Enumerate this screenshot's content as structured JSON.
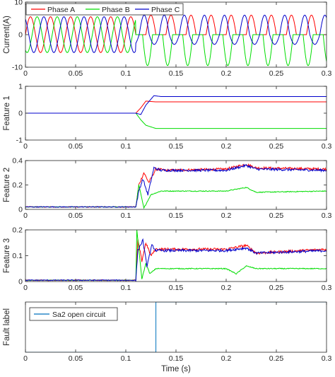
{
  "colors": {
    "phase_a": "#ff0000",
    "phase_b": "#00dd00",
    "phase_c": "#0000cc",
    "fault": "#0072bd",
    "axis": "#262626"
  },
  "xlabel": "Time (s)",
  "chart_data": [
    {
      "type": "line",
      "ylabel": "Current(A)",
      "xlim": [
        0,
        0.3
      ],
      "ylim": [
        -10,
        10
      ],
      "xticks": [
        0,
        0.05,
        0.1,
        0.15,
        0.2,
        0.25,
        0.3
      ],
      "yticks": [
        -10,
        0,
        10
      ],
      "legend_position": "top",
      "grid": false,
      "series": [
        {
          "name": "Phase A",
          "color": "#ff0000",
          "amplitude": 5.5,
          "frequency_hz": 50,
          "phase_deg": 0,
          "after_fault": {
            "start": 0.11,
            "min": 0,
            "max": 6
          }
        },
        {
          "name": "Phase B",
          "color": "#00dd00",
          "amplitude": 5.5,
          "frequency_hz": 50,
          "phase_deg": -120,
          "after_fault": {
            "start": 0.11,
            "min": -9.5,
            "max": 0
          }
        },
        {
          "name": "Phase C",
          "color": "#0000cc",
          "amplitude": 5.5,
          "frequency_hz": 50,
          "phase_deg": 120,
          "after_fault": {
            "start": 0.11,
            "min": -3,
            "max": 6
          }
        }
      ]
    },
    {
      "type": "line",
      "ylabel": "Feature 1",
      "xlim": [
        0,
        0.3
      ],
      "ylim": [
        -1,
        1
      ],
      "xticks": [
        0,
        0.05,
        0.1,
        0.15,
        0.2,
        0.25,
        0.3
      ],
      "yticks": [
        -1,
        0,
        1
      ],
      "grid": false,
      "series": [
        {
          "color": "#ff0000",
          "x": [
            0,
            0.11,
            0.115,
            0.12,
            0.13,
            0.3
          ],
          "y": [
            0,
            0,
            0.2,
            0.45,
            0.42,
            0.42
          ]
        },
        {
          "color": "#00dd00",
          "x": [
            0,
            0.11,
            0.115,
            0.12,
            0.13,
            0.3
          ],
          "y": [
            0,
            0,
            -0.25,
            -0.45,
            -0.57,
            -0.57
          ]
        },
        {
          "color": "#0000cc",
          "x": [
            0,
            0.11,
            0.115,
            0.12,
            0.128,
            0.135,
            0.3
          ],
          "y": [
            0,
            0,
            -0.05,
            0.3,
            0.65,
            0.62,
            0.62
          ]
        }
      ]
    },
    {
      "type": "line",
      "ylabel": "Feature 2",
      "xlim": [
        0,
        0.3
      ],
      "ylim": [
        0,
        0.4
      ],
      "xticks": [
        0,
        0.05,
        0.1,
        0.15,
        0.2,
        0.25,
        0.3
      ],
      "yticks": [
        0,
        0.2,
        0.4
      ],
      "grid": false,
      "series": [
        {
          "color": "#ff0000",
          "x": [
            0,
            0.11,
            0.113,
            0.118,
            0.123,
            0.13,
            0.14,
            0.2,
            0.22,
            0.23,
            0.3
          ],
          "y": [
            0.02,
            0.02,
            0.2,
            0.3,
            0.22,
            0.33,
            0.32,
            0.33,
            0.37,
            0.34,
            0.33
          ]
        },
        {
          "color": "#00dd00",
          "x": [
            0,
            0.11,
            0.113,
            0.118,
            0.125,
            0.135,
            0.2,
            0.22,
            0.23,
            0.3
          ],
          "y": [
            0.02,
            0.02,
            0.2,
            0.01,
            0.12,
            0.15,
            0.15,
            0.18,
            0.14,
            0.15
          ]
        },
        {
          "color": "#0000cc",
          "x": [
            0,
            0.11,
            0.113,
            0.117,
            0.122,
            0.128,
            0.135,
            0.2,
            0.22,
            0.23,
            0.3
          ],
          "y": [
            0.02,
            0.02,
            0.15,
            0.25,
            0.12,
            0.34,
            0.32,
            0.32,
            0.36,
            0.33,
            0.32
          ]
        }
      ]
    },
    {
      "type": "line",
      "ylabel": "Feature 3",
      "xlim": [
        0,
        0.3
      ],
      "ylim": [
        0,
        0.2
      ],
      "xticks": [
        0,
        0.05,
        0.1,
        0.15,
        0.2,
        0.25,
        0.3
      ],
      "yticks": [
        0,
        0.1,
        0.2
      ],
      "grid": false,
      "series": [
        {
          "color": "#ff0000",
          "x": [
            0,
            0.11,
            0.112,
            0.116,
            0.12,
            0.125,
            0.13,
            0.2,
            0.22,
            0.23,
            0.3
          ],
          "y": [
            0.005,
            0.005,
            0.16,
            0.08,
            0.15,
            0.1,
            0.125,
            0.125,
            0.14,
            0.11,
            0.125
          ]
        },
        {
          "color": "#00dd00",
          "x": [
            0,
            0.11,
            0.111,
            0.116,
            0.12,
            0.124,
            0.13,
            0.2,
            0.21,
            0.22,
            0.23,
            0.3
          ],
          "y": [
            0.005,
            0.005,
            0.2,
            0.01,
            0.07,
            0.03,
            0.05,
            0.05,
            0.03,
            0.06,
            0.05,
            0.05
          ]
        },
        {
          "color": "#0000cc",
          "x": [
            0,
            0.11,
            0.112,
            0.117,
            0.121,
            0.126,
            0.13,
            0.2,
            0.22,
            0.23,
            0.3
          ],
          "y": [
            0.005,
            0.005,
            0.12,
            0.16,
            0.06,
            0.14,
            0.12,
            0.12,
            0.13,
            0.11,
            0.12
          ]
        }
      ]
    },
    {
      "type": "line",
      "ylabel": "Fault label",
      "xlim": [
        0,
        0.3
      ],
      "ylim": [
        0,
        1
      ],
      "xticks": [
        0,
        0.05,
        0.1,
        0.15,
        0.2,
        0.25,
        0.3
      ],
      "yticks": [],
      "legend_position": "top-left",
      "grid": false,
      "series": [
        {
          "name": "Sa2 open circuit",
          "color": "#0072bd",
          "x": [
            0,
            0.13,
            0.13,
            0.3
          ],
          "y": [
            0,
            0,
            1,
            1
          ]
        }
      ]
    }
  ]
}
